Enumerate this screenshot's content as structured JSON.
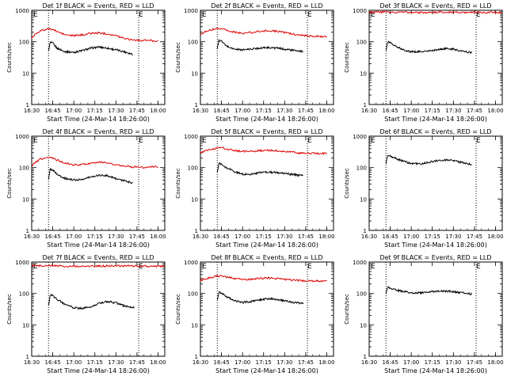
{
  "figure": {
    "xlabel": "Start Time (24-Mar-14 18:26:00)",
    "ylabel": "Counts/sec",
    "xticklabels": [
      "16:30",
      "16:45",
      "17:00",
      "17:15",
      "17:30",
      "17:45",
      "18:00"
    ],
    "yticklabels": [
      "1",
      "10",
      "100",
      "1000"
    ],
    "marker_label": "E",
    "colors": {
      "events": "#000000",
      "lld": "#dd0000",
      "axis": "#000000",
      "background": "#ffffff"
    }
  },
  "chart_data": [
    {
      "type": "line",
      "detector": "1f",
      "title": "Det 1f BLACK = Events, RED = LLD",
      "xlabel": "Start Time (24-Mar-14 18:26:00)",
      "ylabel": "Counts/sec",
      "xlim": [
        16.5,
        18.08
      ],
      "ylim": [
        1,
        1000
      ],
      "yscale": "log",
      "markers_x": [
        16.7,
        17.77
      ],
      "series": [
        {
          "name": "Events",
          "color": "#000000",
          "x": [
            16.7,
            16.72,
            16.75,
            16.8,
            16.9,
            17.0,
            17.1,
            17.2,
            17.3,
            17.4,
            17.5,
            17.6,
            17.7
          ],
          "y": [
            50,
            95,
            90,
            62,
            48,
            46,
            52,
            62,
            68,
            62,
            55,
            48,
            40
          ]
        },
        {
          "name": "LLD",
          "color": "#dd0000",
          "x": [
            16.5,
            16.55,
            16.6,
            16.7,
            16.75,
            16.8,
            16.9,
            17.0,
            17.1,
            17.2,
            17.3,
            17.4,
            17.5,
            17.6,
            17.7,
            17.8,
            17.9,
            18.0
          ],
          "y": [
            130,
            185,
            220,
            255,
            250,
            210,
            165,
            155,
            165,
            185,
            190,
            180,
            155,
            130,
            115,
            110,
            110,
            105
          ]
        }
      ]
    },
    {
      "type": "line",
      "detector": "2f",
      "title": "Det 2f BLACK = Events, RED = LLD",
      "xlabel": "Start Time (24-Mar-14 18:26:00)",
      "ylabel": "Counts/sec",
      "xlim": [
        16.5,
        18.08
      ],
      "ylim": [
        1,
        1000
      ],
      "yscale": "log",
      "markers_x": [
        16.7,
        17.77
      ],
      "series": [
        {
          "name": "Events",
          "color": "#000000",
          "x": [
            16.7,
            16.72,
            16.75,
            16.8,
            16.9,
            17.0,
            17.1,
            17.2,
            17.3,
            17.4,
            17.5,
            17.6,
            17.72
          ],
          "y": [
            60,
            110,
            105,
            75,
            58,
            55,
            58,
            63,
            65,
            63,
            58,
            53,
            48
          ]
        },
        {
          "name": "LLD",
          "color": "#dd0000",
          "x": [
            16.5,
            16.6,
            16.7,
            16.75,
            16.8,
            16.9,
            17.0,
            17.1,
            17.2,
            17.3,
            17.4,
            17.5,
            17.6,
            17.7,
            17.8,
            17.9,
            18.0
          ],
          "y": [
            180,
            230,
            270,
            265,
            240,
            200,
            185,
            195,
            215,
            225,
            215,
            195,
            175,
            160,
            150,
            150,
            145
          ]
        }
      ]
    },
    {
      "type": "line",
      "detector": "3f",
      "title": "Det 3f BLACK = Events, RED = LLD",
      "xlabel": "Start Time (24-Mar-14 18:26:00)",
      "ylabel": "Counts/sec",
      "xlim": [
        16.5,
        18.08
      ],
      "ylim": [
        1,
        1000
      ],
      "yscale": "log",
      "markers_x": [
        16.7,
        17.77
      ],
      "series": [
        {
          "name": "Events",
          "color": "#000000",
          "x": [
            16.7,
            16.72,
            16.75,
            16.8,
            16.9,
            17.0,
            17.1,
            17.2,
            17.3,
            17.4,
            17.5,
            17.6,
            17.72
          ],
          "y": [
            50,
            100,
            95,
            75,
            55,
            48,
            48,
            50,
            55,
            60,
            58,
            50,
            45
          ]
        },
        {
          "name": "LLD",
          "color": "#dd0000",
          "x": [
            16.5,
            16.7,
            16.9,
            17.1,
            17.3,
            17.5,
            17.7,
            17.9,
            18.08
          ],
          "y": [
            870,
            880,
            860,
            850,
            860,
            870,
            860,
            850,
            850
          ]
        }
      ]
    },
    {
      "type": "line",
      "detector": "4f",
      "title": "Det 4f BLACK = Events, RED = LLD",
      "xlabel": "Start Time (24-Mar-14 18:26:00)",
      "ylabel": "Counts/sec",
      "xlim": [
        16.5,
        18.08
      ],
      "ylim": [
        1,
        1000
      ],
      "yscale": "log",
      "markers_x": [
        16.7,
        17.77
      ],
      "series": [
        {
          "name": "Events",
          "color": "#000000",
          "x": [
            16.7,
            16.72,
            16.75,
            16.8,
            16.9,
            17.0,
            17.1,
            17.2,
            17.3,
            17.4,
            17.5,
            17.6,
            17.7
          ],
          "y": [
            40,
            90,
            85,
            60,
            45,
            40,
            42,
            50,
            58,
            55,
            45,
            38,
            32
          ]
        },
        {
          "name": "LLD",
          "color": "#dd0000",
          "x": [
            16.5,
            16.55,
            16.6,
            16.7,
            16.75,
            16.8,
            16.9,
            17.0,
            17.1,
            17.2,
            17.3,
            17.4,
            17.5,
            17.6,
            17.7,
            17.8,
            17.9,
            18.0
          ],
          "y": [
            115,
            150,
            185,
            215,
            205,
            175,
            140,
            120,
            125,
            140,
            150,
            140,
            125,
            115,
            105,
            100,
            105,
            105
          ]
        }
      ]
    },
    {
      "type": "line",
      "detector": "5f",
      "title": "Det 5f BLACK = Events, RED = LLD",
      "xlabel": "Start Time (24-Mar-14 18:26:00)",
      "ylabel": "Counts/sec",
      "xlim": [
        16.5,
        18.08
      ],
      "ylim": [
        1,
        1000
      ],
      "yscale": "log",
      "markers_x": [
        16.7,
        17.77
      ],
      "series": [
        {
          "name": "Events",
          "color": "#000000",
          "x": [
            16.7,
            16.72,
            16.75,
            16.8,
            16.9,
            17.0,
            17.1,
            17.2,
            17.3,
            17.4,
            17.5,
            17.6,
            17.72
          ],
          "y": [
            70,
            135,
            125,
            100,
            75,
            62,
            62,
            68,
            72,
            70,
            65,
            60,
            55
          ]
        },
        {
          "name": "LLD",
          "color": "#dd0000",
          "x": [
            16.5,
            16.6,
            16.7,
            16.75,
            16.8,
            16.9,
            17.0,
            17.1,
            17.2,
            17.3,
            17.4,
            17.5,
            17.6,
            17.7,
            17.8,
            17.9,
            18.0
          ],
          "y": [
            300,
            360,
            420,
            430,
            400,
            350,
            325,
            330,
            345,
            355,
            345,
            325,
            305,
            290,
            285,
            285,
            280
          ]
        }
      ]
    },
    {
      "type": "line",
      "detector": "6f",
      "title": "Det 6f BLACK = Events, RED = LLD",
      "xlabel": "Start Time (24-Mar-14 18:26:00)",
      "ylabel": "Counts/sec",
      "xlim": [
        16.5,
        18.08
      ],
      "ylim": [
        1,
        1000
      ],
      "yscale": "log",
      "markers_x": [
        16.7,
        17.77
      ],
      "series": [
        {
          "name": "Events",
          "color": "#000000",
          "x": [
            16.7,
            16.72,
            16.75,
            16.8,
            16.9,
            17.0,
            17.1,
            17.2,
            17.3,
            17.4,
            17.5,
            17.6,
            17.72
          ],
          "y": [
            140,
            240,
            230,
            200,
            160,
            135,
            130,
            145,
            165,
            175,
            165,
            145,
            125
          ]
        }
      ]
    },
    {
      "type": "line",
      "detector": "7f",
      "title": "Det 7f BLACK = Events, RED = LLD",
      "xlabel": "Start Time (24-Mar-14 18:26:00)",
      "ylabel": "Counts/sec",
      "xlim": [
        16.5,
        18.08
      ],
      "ylim": [
        1,
        1000
      ],
      "yscale": "log",
      "markers_x": [
        16.7,
        17.77
      ],
      "series": [
        {
          "name": "Events",
          "color": "#000000",
          "x": [
            16.7,
            16.72,
            16.75,
            16.8,
            16.9,
            17.0,
            17.1,
            17.2,
            17.3,
            17.4,
            17.5,
            17.6,
            17.72
          ],
          "y": [
            40,
            90,
            85,
            65,
            45,
            35,
            33,
            38,
            48,
            55,
            50,
            40,
            35
          ]
        },
        {
          "name": "LLD",
          "color": "#dd0000",
          "x": [
            16.5,
            16.7,
            16.9,
            17.1,
            17.3,
            17.5,
            17.7,
            17.9,
            18.08
          ],
          "y": [
            760,
            780,
            740,
            720,
            740,
            760,
            750,
            730,
            740
          ]
        }
      ]
    },
    {
      "type": "line",
      "detector": "8f",
      "title": "Det 8f BLACK = Events, RED = LLD",
      "xlabel": "Start Time (24-Mar-14 18:26:00)",
      "ylabel": "Counts/sec",
      "xlim": [
        16.5,
        18.08
      ],
      "ylim": [
        1,
        1000
      ],
      "yscale": "log",
      "markers_x": [
        16.7,
        17.77
      ],
      "series": [
        {
          "name": "Events",
          "color": "#000000",
          "x": [
            16.7,
            16.72,
            16.75,
            16.8,
            16.9,
            17.0,
            17.1,
            17.2,
            17.3,
            17.4,
            17.5,
            17.6,
            17.72
          ],
          "y": [
            60,
            110,
            105,
            80,
            60,
            52,
            55,
            62,
            68,
            65,
            58,
            52,
            48
          ]
        },
        {
          "name": "LLD",
          "color": "#dd0000",
          "x": [
            16.5,
            16.6,
            16.7,
            16.75,
            16.8,
            16.9,
            17.0,
            17.1,
            17.2,
            17.3,
            17.4,
            17.5,
            17.6,
            17.7,
            17.8,
            17.9,
            18.0
          ],
          "y": [
            260,
            310,
            360,
            365,
            340,
            300,
            275,
            280,
            300,
            310,
            300,
            280,
            265,
            255,
            250,
            250,
            245
          ]
        }
      ]
    },
    {
      "type": "line",
      "detector": "9f",
      "title": "Det 9f BLACK = Events, RED = LLD",
      "xlabel": "Start Time (24-Mar-14 18:26:00)",
      "ylabel": "Counts/sec",
      "xlim": [
        16.5,
        18.08
      ],
      "ylim": [
        1,
        1000
      ],
      "yscale": "log",
      "markers_x": [
        16.7,
        17.77
      ],
      "series": [
        {
          "name": "Events",
          "color": "#000000",
          "x": [
            16.7,
            16.72,
            16.75,
            16.8,
            16.9,
            17.0,
            17.1,
            17.2,
            17.3,
            17.4,
            17.5,
            17.6,
            17.72
          ],
          "y": [
            100,
            160,
            150,
            135,
            115,
            105,
            105,
            110,
            118,
            120,
            115,
            105,
            95
          ]
        }
      ]
    }
  ]
}
